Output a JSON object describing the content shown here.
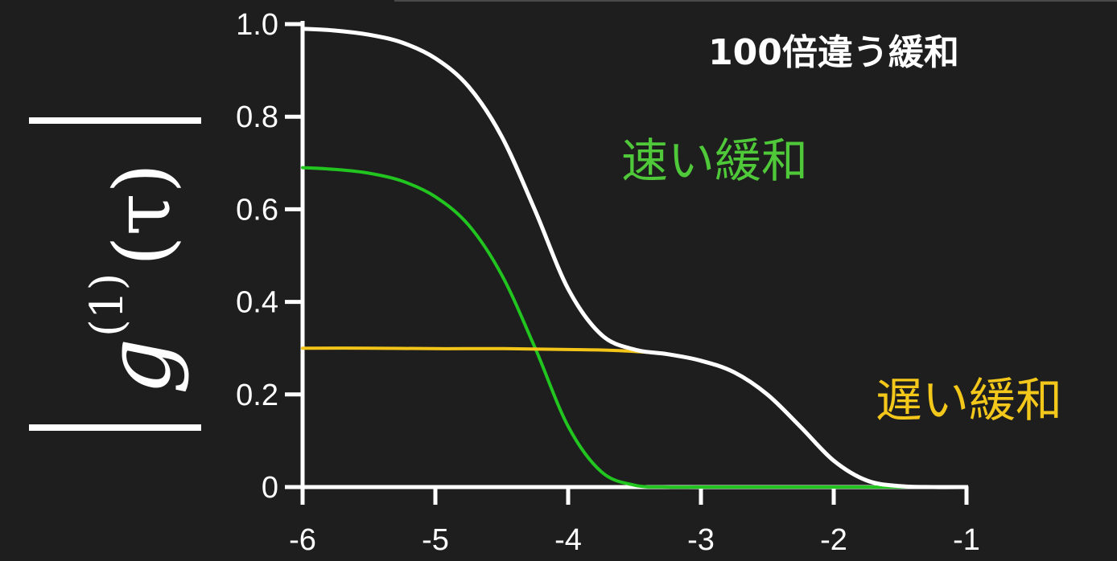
{
  "chart_data": {
    "type": "line",
    "title": "100倍違う緩和",
    "xlabel": "",
    "ylabel": "|g^(1)(τ)|",
    "ylabel_parts": {
      "main": "g",
      "sup": "(1)",
      "arg": "(τ)"
    },
    "xlim": [
      -6,
      -1
    ],
    "ylim": [
      0,
      1.0
    ],
    "x_ticks": [
      "-6",
      "-5",
      "-4",
      "-3",
      "-2",
      "-1"
    ],
    "y_ticks": [
      "0",
      "0.2",
      "0.4",
      "0.6",
      "0.8",
      "1.0"
    ],
    "x_tick_values": [
      -6,
      -5,
      -4,
      -3,
      -2,
      -1
    ],
    "y_tick_values": [
      0,
      0.2,
      0.4,
      0.6,
      0.8,
      1.0
    ],
    "grid": false,
    "series": [
      {
        "name": "速い緩和",
        "color": "#22c41f",
        "x": [
          -6.0,
          -5.75,
          -5.5,
          -5.25,
          -5.0,
          -4.75,
          -4.5,
          -4.25,
          -4.0,
          -3.75,
          -3.5,
          -3.25,
          -3.0,
          -2.5,
          -2.0,
          -1.5,
          -1.0
        ],
        "values": [
          0.69,
          0.686,
          0.678,
          0.661,
          0.627,
          0.566,
          0.458,
          0.301,
          0.131,
          0.033,
          0.004,
          0.0,
          0.0,
          0.0,
          0.0,
          0.0,
          0.0
        ]
      },
      {
        "name": "遅い緩和",
        "color": "#f2c518",
        "x": [
          -6.0,
          -5.5,
          -5.0,
          -4.5,
          -4.0,
          -3.75,
          -3.5,
          -3.25,
          -3.0,
          -2.75,
          -2.5,
          -2.25,
          -2.0,
          -1.75,
          -1.5,
          -1.25,
          -1.0
        ],
        "values": [
          0.3,
          0.3,
          0.299,
          0.299,
          0.297,
          0.296,
          0.293,
          0.287,
          0.273,
          0.248,
          0.2,
          0.13,
          0.057,
          0.014,
          0.002,
          0.0,
          0.0
        ]
      },
      {
        "name": "100倍違う緩和",
        "color": "#ffffff",
        "x": [
          -6.0,
          -5.75,
          -5.5,
          -5.25,
          -5.0,
          -4.75,
          -4.5,
          -4.25,
          -4.0,
          -3.75,
          -3.5,
          -3.25,
          -3.0,
          -2.75,
          -2.5,
          -2.25,
          -2.0,
          -1.75,
          -1.5,
          -1.25,
          -1.0
        ],
        "values": [
          0.99,
          0.986,
          0.977,
          0.96,
          0.926,
          0.865,
          0.757,
          0.598,
          0.428,
          0.329,
          0.297,
          0.287,
          0.273,
          0.248,
          0.2,
          0.13,
          0.057,
          0.014,
          0.002,
          0.0,
          0.0
        ]
      }
    ],
    "annotations": [
      {
        "text": "100倍違う緩和",
        "color": "#ffffff"
      },
      {
        "text": "速い緩和",
        "color": "#4fc93a"
      },
      {
        "text": "遅い緩和",
        "color": "#f4c81a"
      }
    ]
  }
}
